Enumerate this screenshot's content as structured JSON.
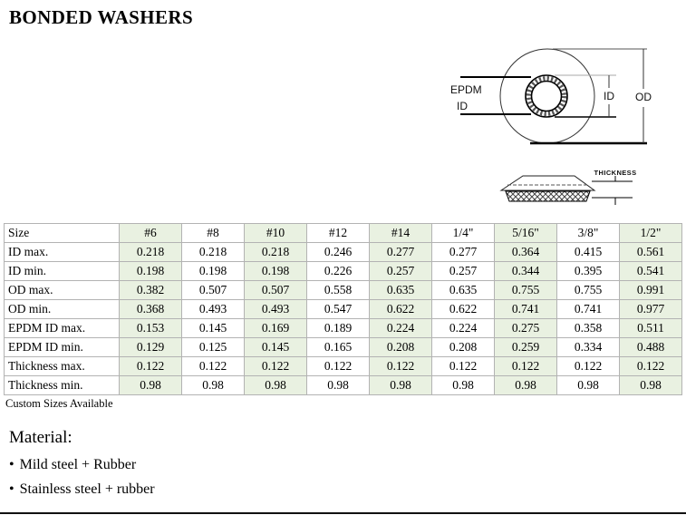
{
  "page": {
    "title": "BONDED WASHERS",
    "custom_note": "Custom Sizes Available",
    "material_heading": "Material:",
    "bullet": "•",
    "materials": [
      "Mild steel + Rubber",
      "Stainless steel + rubber"
    ]
  },
  "diagram": {
    "labels": {
      "epdm": "EPDM",
      "id_left": "ID",
      "id_right": "ID",
      "od": "OD",
      "thickness": "THICKNESS"
    }
  },
  "table": {
    "header": [
      "Size",
      "#6",
      "#8",
      "#10",
      "#12",
      "#14",
      "1/4\"",
      "5/16\"",
      "3/8\"",
      "1/2\""
    ],
    "rows": [
      {
        "label": "ID max.",
        "values": [
          "0.218",
          "0.218",
          "0.218",
          "0.246",
          "0.277",
          "0.277",
          "0.364",
          "0.415",
          "0.561"
        ]
      },
      {
        "label": "ID min.",
        "values": [
          "0.198",
          "0.198",
          "0.198",
          "0.226",
          "0.257",
          "0.257",
          "0.344",
          "0.395",
          "0.541"
        ]
      },
      {
        "label": "OD max.",
        "values": [
          "0.382",
          "0.507",
          "0.507",
          "0.558",
          "0.635",
          "0.635",
          "0.755",
          "0.755",
          "0.991"
        ]
      },
      {
        "label": "OD min.",
        "values": [
          "0.368",
          "0.493",
          "0.493",
          "0.547",
          "0.622",
          "0.622",
          "0.741",
          "0.741",
          "0.977"
        ]
      },
      {
        "label": "EPDM ID max.",
        "values": [
          "0.153",
          "0.145",
          "0.169",
          "0.189",
          "0.224",
          "0.224",
          "0.275",
          "0.358",
          "0.511"
        ]
      },
      {
        "label": "EPDM ID min.",
        "values": [
          "0.129",
          "0.125",
          "0.145",
          "0.165",
          "0.208",
          "0.208",
          "0.259",
          "0.334",
          "0.488"
        ]
      },
      {
        "label": "Thickness max.",
        "values": [
          "0.122",
          "0.122",
          "0.122",
          "0.122",
          "0.122",
          "0.122",
          "0.122",
          "0.122",
          "0.122"
        ]
      },
      {
        "label": "Thickness min.",
        "values": [
          "0.98",
          "0.98",
          "0.98",
          "0.98",
          "0.98",
          "0.98",
          "0.98",
          "0.98",
          "0.98"
        ]
      }
    ],
    "colors": {
      "highlight": "#e9f1e1",
      "border": "#b3b3b3"
    }
  }
}
